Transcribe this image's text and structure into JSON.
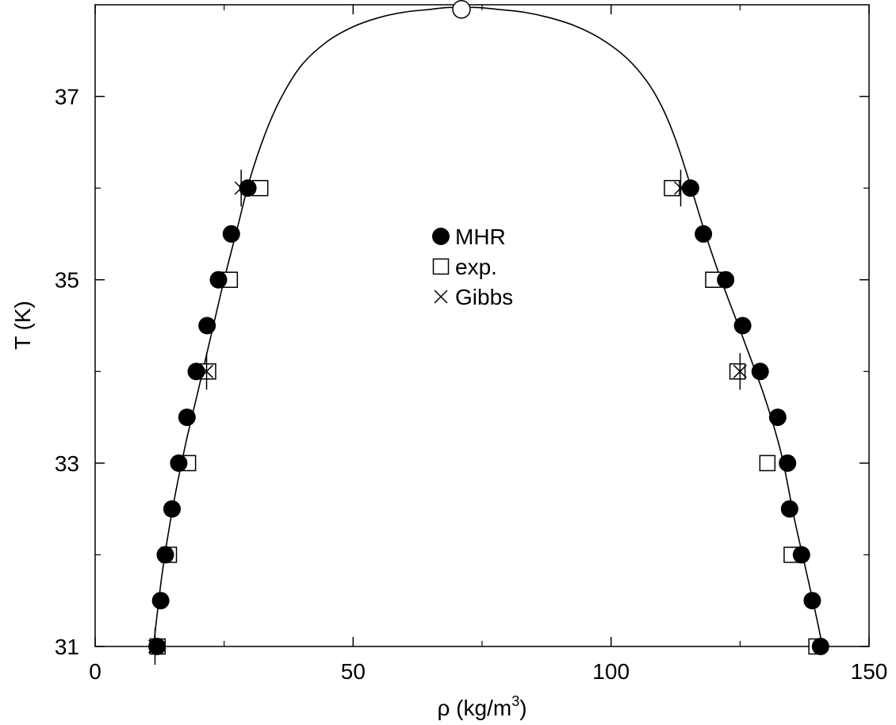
{
  "chart_data": {
    "type": "scatter",
    "title": "",
    "xlabel": "ρ (kg/m",
    "xlabel_sup": "3",
    "xlabel_close": ")",
    "ylabel": "T (K)",
    "xlim": [
      0,
      150
    ],
    "ylim": [
      31,
      38
    ],
    "x_ticks": [
      {
        "value": 0,
        "label": "0"
      },
      {
        "value": 50,
        "label": "50"
      },
      {
        "value": 100,
        "label": "100"
      },
      {
        "value": 150,
        "label": "150"
      }
    ],
    "y_ticks": [
      {
        "value": 31,
        "label": "31"
      },
      {
        "value": 33,
        "label": "33"
      },
      {
        "value": 35,
        "label": "35"
      },
      {
        "value": 37,
        "label": "37"
      }
    ],
    "y_minor_ticks": [
      32,
      34,
      36
    ],
    "x_minor_ticks": [
      25,
      75,
      125
    ],
    "grid": false,
    "legend_position": "center",
    "series": [
      {
        "name": "MHR",
        "marker": "filled-circle",
        "points": [
          [
            12.0,
            31.0
          ],
          [
            12.7,
            31.5
          ],
          [
            13.6,
            32.0
          ],
          [
            14.9,
            32.5
          ],
          [
            16.2,
            33.0
          ],
          [
            17.8,
            33.5
          ],
          [
            19.6,
            34.0
          ],
          [
            21.7,
            34.5
          ],
          [
            23.9,
            35.0
          ],
          [
            26.4,
            35.5
          ],
          [
            29.6,
            36.0
          ],
          [
            115.4,
            36.0
          ],
          [
            117.9,
            35.5
          ],
          [
            122.2,
            35.0
          ],
          [
            125.5,
            34.5
          ],
          [
            128.9,
            34.0
          ],
          [
            132.3,
            33.5
          ],
          [
            134.2,
            33.0
          ],
          [
            134.6,
            32.5
          ],
          [
            136.9,
            32.0
          ],
          [
            139.0,
            31.5
          ],
          [
            140.6,
            31.0
          ]
        ]
      },
      {
        "name": "exp.",
        "marker": "open-square",
        "points": [
          [
            12.1,
            31.0
          ],
          [
            14.3,
            32.0
          ],
          [
            18.0,
            33.0
          ],
          [
            21.9,
            34.0
          ],
          [
            26.1,
            35.0
          ],
          [
            32.0,
            36.0
          ],
          [
            111.8,
            36.0
          ],
          [
            119.8,
            35.0
          ],
          [
            124.5,
            34.0
          ],
          [
            130.3,
            33.0
          ],
          [
            135.0,
            32.0
          ],
          [
            139.8,
            31.0
          ]
        ]
      },
      {
        "name": "Gibbs",
        "marker": "cross",
        "points": [
          [
            11.6,
            31.0
          ],
          [
            21.6,
            34.0
          ],
          [
            28.3,
            36.0
          ],
          [
            113.5,
            36.0
          ],
          [
            125.0,
            34.0
          ]
        ],
        "error": [
          0.2,
          0.2,
          0.2,
          0.2,
          0.2
        ]
      }
    ],
    "curve": {
      "name": "",
      "points": [
        [
          11.3,
          31.0
        ],
        [
          13.0,
          31.8
        ],
        [
          15.0,
          32.5
        ],
        [
          17.5,
          33.2
        ],
        [
          20.0,
          33.8
        ],
        [
          22.5,
          34.4
        ],
        [
          25.0,
          35.0
        ],
        [
          27.5,
          35.55
        ],
        [
          30.0,
          36.1
        ],
        [
          33.0,
          36.6
        ],
        [
          36.0,
          36.98
        ],
        [
          40.0,
          37.34
        ],
        [
          45.0,
          37.6
        ],
        [
          50.0,
          37.76
        ],
        [
          55.0,
          37.86
        ],
        [
          60.0,
          37.92
        ],
        [
          65.0,
          37.95
        ],
        [
          68.5,
          37.97
        ],
        [
          74.0,
          37.97
        ],
        [
          78.0,
          37.95
        ],
        [
          83.0,
          37.92
        ],
        [
          88.0,
          37.86
        ],
        [
          93.0,
          37.77
        ],
        [
          98.0,
          37.63
        ],
        [
          103.0,
          37.42
        ],
        [
          107.0,
          37.16
        ],
        [
          110.0,
          36.87
        ],
        [
          112.5,
          36.53
        ],
        [
          115.0,
          36.1
        ],
        [
          118.0,
          35.55
        ],
        [
          121.0,
          35.05
        ],
        [
          124.0,
          34.6
        ],
        [
          127.0,
          34.15
        ],
        [
          130.0,
          33.68
        ],
        [
          133.0,
          33.1
        ],
        [
          135.5,
          32.4
        ],
        [
          137.5,
          31.9
        ],
        [
          139.5,
          31.4
        ],
        [
          141.0,
          31.0
        ]
      ]
    },
    "critical_point": {
      "x": 71.0,
      "y": 37.95
    }
  }
}
